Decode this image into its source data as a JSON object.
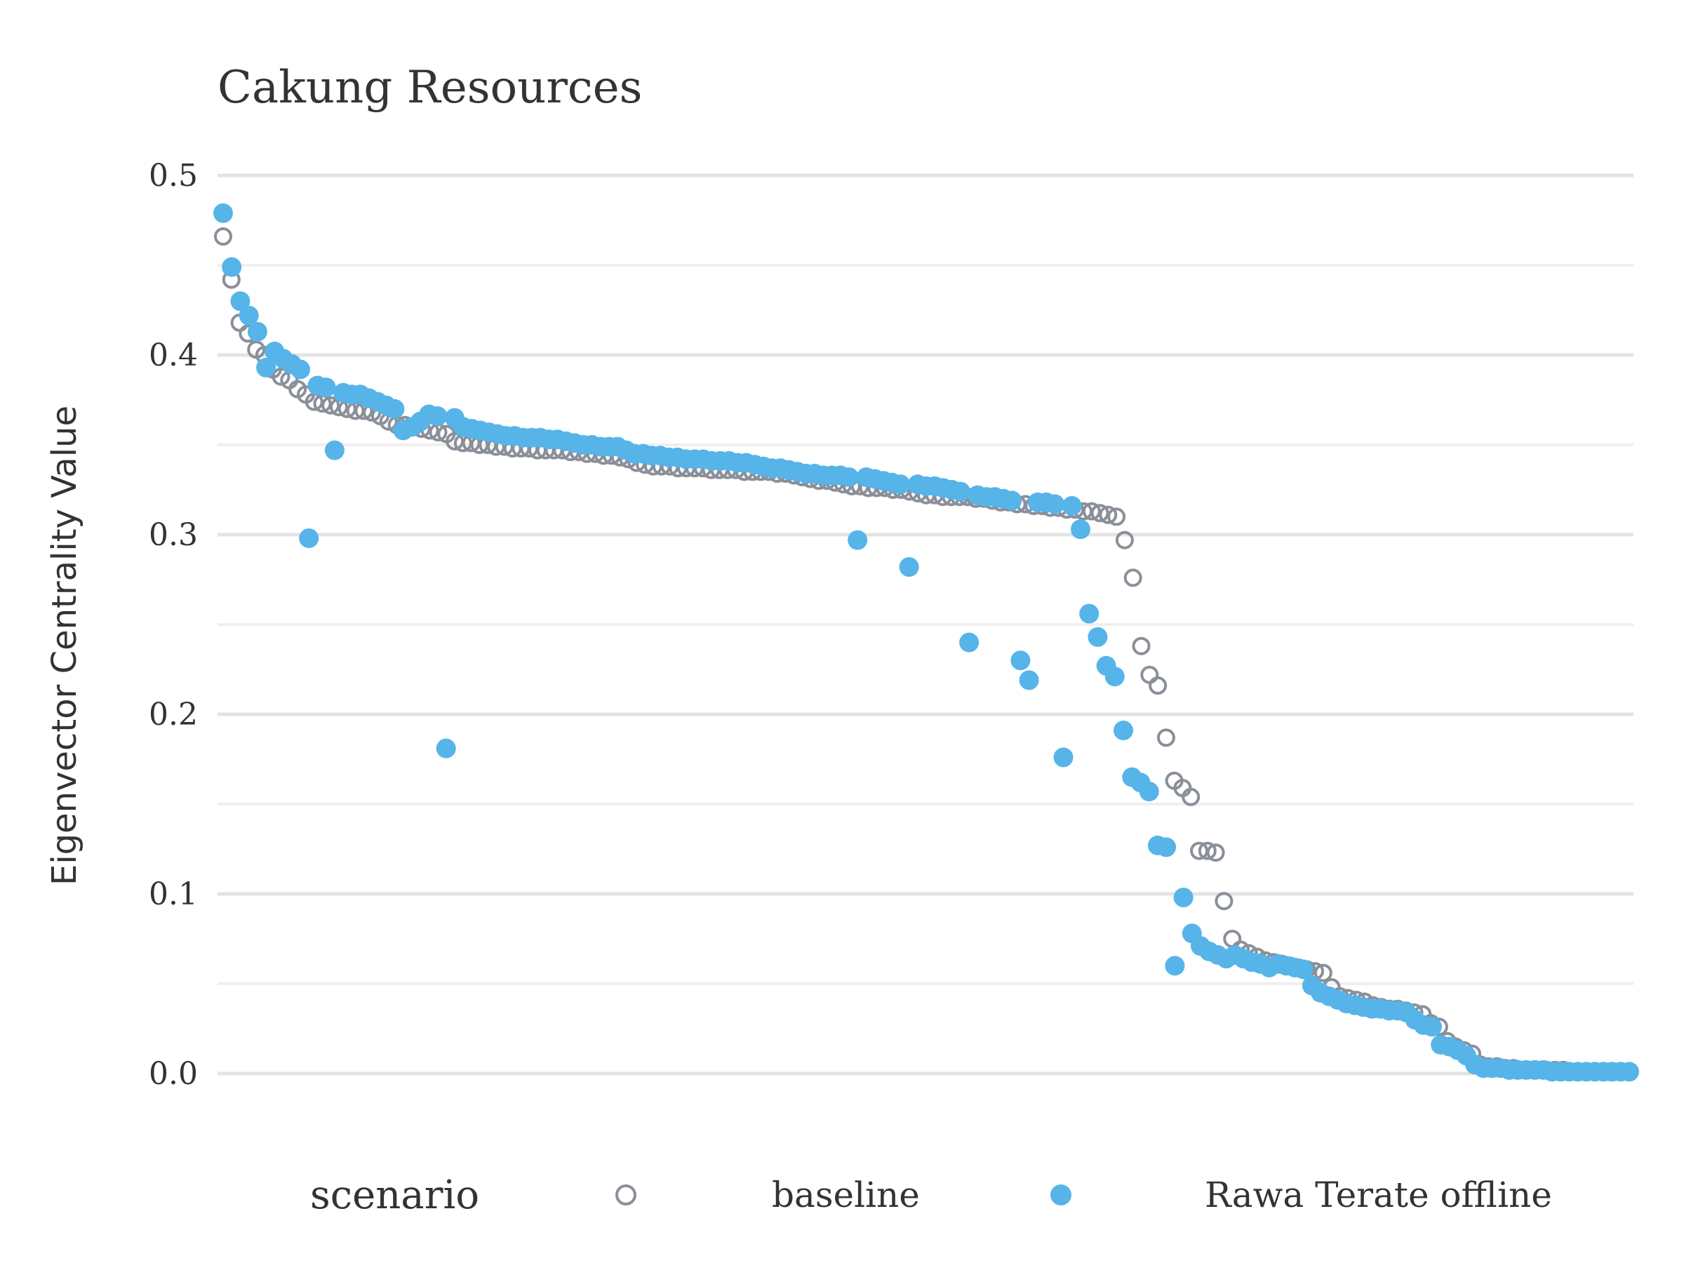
{
  "chart_data": {
    "type": "scatter",
    "title": "Cakung Resources",
    "ylabel": "Eigenvector Centrality Value",
    "xlabel": "",
    "ylim": [
      -0.06,
      0.52
    ],
    "yticks": [
      "0.0",
      "0.1",
      "0.2",
      "0.3",
      "0.4",
      "0.5"
    ],
    "grid": true,
    "legend": {
      "title": "scenario",
      "position": "bottom",
      "entries": [
        "baseline",
        "Rawa Terate offline"
      ]
    },
    "colors": {
      "baseline": "#8a8f99",
      "offline": "#56b4e9",
      "grid": "#e6e6e6"
    },
    "series": [
      {
        "name": "baseline",
        "marker": "open-circle",
        "values": [
          0.466,
          0.442,
          0.418,
          0.412,
          0.403,
          0.4,
          0.392,
          0.388,
          0.386,
          0.381,
          0.378,
          0.374,
          0.373,
          0.372,
          0.371,
          0.37,
          0.369,
          0.369,
          0.368,
          0.366,
          0.363,
          0.361,
          0.361,
          0.36,
          0.359,
          0.358,
          0.357,
          0.356,
          0.352,
          0.351,
          0.351,
          0.35,
          0.35,
          0.349,
          0.349,
          0.348,
          0.348,
          0.348,
          0.347,
          0.347,
          0.347,
          0.347,
          0.346,
          0.346,
          0.345,
          0.345,
          0.344,
          0.344,
          0.343,
          0.342,
          0.34,
          0.339,
          0.338,
          0.338,
          0.338,
          0.337,
          0.337,
          0.337,
          0.337,
          0.336,
          0.336,
          0.336,
          0.336,
          0.335,
          0.335,
          0.335,
          0.335,
          0.334,
          0.334,
          0.333,
          0.332,
          0.331,
          0.33,
          0.33,
          0.329,
          0.328,
          0.327,
          0.327,
          0.326,
          0.326,
          0.326,
          0.325,
          0.325,
          0.324,
          0.323,
          0.322,
          0.322,
          0.321,
          0.321,
          0.321,
          0.321,
          0.32,
          0.32,
          0.319,
          0.318,
          0.318,
          0.317,
          0.317,
          0.316,
          0.316,
          0.315,
          0.315,
          0.314,
          0.314,
          0.313,
          0.313,
          0.312,
          0.311,
          0.31,
          0.297,
          0.276,
          0.238,
          0.222,
          0.216,
          0.187,
          0.163,
          0.159,
          0.154,
          0.124,
          0.124,
          0.123,
          0.096,
          0.075,
          0.069,
          0.067,
          0.065,
          0.063,
          0.062,
          0.061,
          0.06,
          0.059,
          0.058,
          0.057,
          0.056,
          0.048,
          0.043,
          0.042,
          0.041,
          0.04,
          0.038,
          0.037,
          0.036,
          0.036,
          0.035,
          0.034,
          0.033,
          0.028,
          0.026,
          0.018,
          0.015,
          0.013,
          0.011,
          0.005,
          0.004,
          0.004,
          0.003,
          0.003,
          0.002,
          0.002,
          0.002,
          0.002,
          0.002,
          0.002,
          0.001,
          0.001,
          0.001,
          0.001,
          0.001,
          0.001,
          0.001,
          0.001
        ]
      },
      {
        "name": "Rawa Terate offline",
        "marker": "filled-circle",
        "values": [
          0.479,
          0.449,
          0.43,
          0.422,
          0.413,
          0.393,
          0.402,
          0.398,
          0.395,
          0.392,
          0.298,
          0.383,
          0.382,
          0.347,
          0.379,
          0.378,
          0.378,
          0.376,
          0.374,
          0.372,
          0.37,
          0.358,
          0.36,
          0.363,
          0.367,
          0.366,
          0.181,
          0.365,
          0.36,
          0.359,
          0.358,
          0.357,
          0.356,
          0.355,
          0.355,
          0.354,
          0.354,
          0.354,
          0.353,
          0.353,
          0.352,
          0.351,
          0.35,
          0.35,
          0.349,
          0.349,
          0.349,
          0.347,
          0.345,
          0.345,
          0.344,
          0.344,
          0.343,
          0.343,
          0.342,
          0.342,
          0.342,
          0.341,
          0.341,
          0.341,
          0.34,
          0.34,
          0.339,
          0.338,
          0.337,
          0.337,
          0.336,
          0.335,
          0.334,
          0.334,
          0.333,
          0.333,
          0.333,
          0.332,
          0.297,
          0.332,
          0.331,
          0.33,
          0.329,
          0.328,
          0.282,
          0.328,
          0.327,
          0.327,
          0.326,
          0.325,
          0.324,
          0.24,
          0.322,
          0.321,
          0.321,
          0.32,
          0.319,
          0.23,
          0.219,
          0.318,
          0.318,
          0.317,
          0.176,
          0.316,
          0.303,
          0.256,
          0.243,
          0.227,
          0.221,
          0.191,
          0.165,
          0.162,
          0.157,
          0.127,
          0.126,
          0.06,
          0.098,
          0.078,
          0.071,
          0.068,
          0.066,
          0.064,
          0.066,
          0.064,
          0.062,
          0.061,
          0.059,
          0.061,
          0.06,
          0.059,
          0.058,
          0.049,
          0.045,
          0.043,
          0.041,
          0.039,
          0.038,
          0.037,
          0.036,
          0.036,
          0.035,
          0.035,
          0.034,
          0.03,
          0.027,
          0.026,
          0.016,
          0.015,
          0.013,
          0.01,
          0.005,
          0.003,
          0.003,
          0.003,
          0.002,
          0.002,
          0.002,
          0.002,
          0.002,
          0.001,
          0.001,
          0.001,
          0.001,
          0.001,
          0.001,
          0.001,
          0.001,
          0.001,
          0.001
        ]
      }
    ]
  }
}
